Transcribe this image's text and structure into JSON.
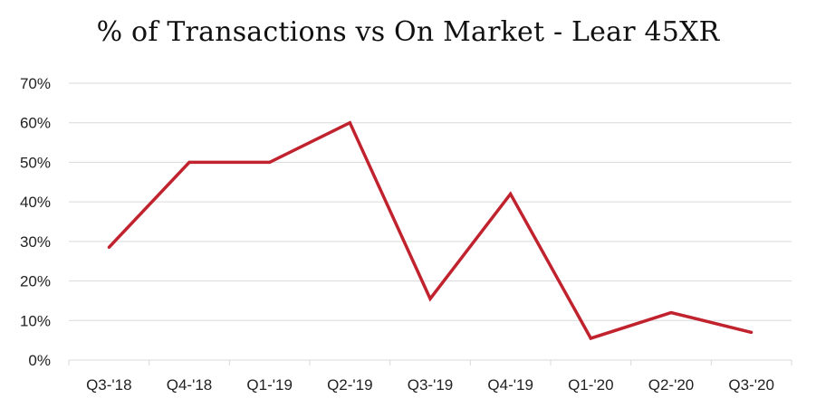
{
  "chart_data": {
    "type": "line",
    "title": "% of Transactions vs On Market - Lear 45XR",
    "xlabel": "",
    "ylabel": "",
    "categories": [
      "Q3-'18",
      "Q4-'18",
      "Q1-'19",
      "Q2-'19",
      "Q3-'19",
      "Q4-'19",
      "Q1-'20",
      "Q2-'20",
      "Q3-'20"
    ],
    "series": [
      {
        "values": [
          28.5,
          50,
          50,
          60,
          15.5,
          42,
          5.5,
          12,
          7
        ],
        "color": "#c0222e"
      }
    ],
    "ylim": [
      0,
      70
    ],
    "yticks": [
      0,
      10,
      20,
      30,
      40,
      50,
      60,
      70
    ],
    "ytick_labels": [
      "0%",
      "10%",
      "20%",
      "30%",
      "40%",
      "50%",
      "60%",
      "70%"
    ],
    "grid": true,
    "legend": "none"
  }
}
